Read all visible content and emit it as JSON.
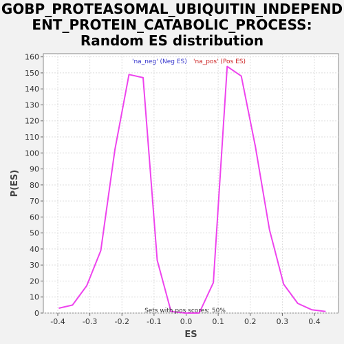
{
  "title_lines": [
    "GOBP_PROTEASOMAL_UBIQUITIN_INDEPEND",
    "ENT_PROTEIN_CATABOLIC_PROCESS:",
    "Random ES distribution"
  ],
  "legend": {
    "neg_label": "'na_neg' (Neg ES)",
    "pos_label": "'na_pos' (Pos ES)",
    "neg_color": "#3333cc",
    "pos_color": "#cc2222"
  },
  "annotation": "Sets with pos scores: 50%",
  "chart_data": {
    "type": "line",
    "xlabel": "ES",
    "ylabel": "P(ES)",
    "xlim": [
      -0.445,
      0.475
    ],
    "ylim": [
      0,
      162
    ],
    "x_ticks": [
      -0.4,
      -0.3,
      -0.2,
      -0.1,
      0.0,
      0.1,
      0.2,
      0.3,
      0.4
    ],
    "x_tick_labels": [
      "-0.4",
      "-0.3",
      "-0.2",
      "-0.1",
      "0.0",
      "0.1",
      "0.2",
      "0.3",
      "0.4"
    ],
    "y_ticks": [
      0,
      10,
      20,
      30,
      40,
      50,
      60,
      70,
      80,
      90,
      100,
      110,
      120,
      130,
      140,
      150,
      160
    ],
    "grid": true,
    "line_color": "#ee44ee",
    "series": [
      {
        "x": [
          -0.397,
          -0.354,
          -0.31,
          -0.266,
          -0.222,
          -0.178,
          -0.134,
          -0.09,
          -0.047,
          -0.003,
          0.041
        ],
        "y": [
          3,
          5,
          17,
          39,
          102,
          149,
          147,
          33,
          1,
          0,
          0
        ]
      },
      {
        "x": [
          0.041,
          0.085,
          0.128,
          0.172,
          0.216,
          0.26,
          0.304,
          0.348,
          0.392,
          0.435
        ],
        "y": [
          0,
          19,
          154,
          148,
          104,
          52,
          18,
          6,
          2,
          1
        ]
      }
    ]
  }
}
